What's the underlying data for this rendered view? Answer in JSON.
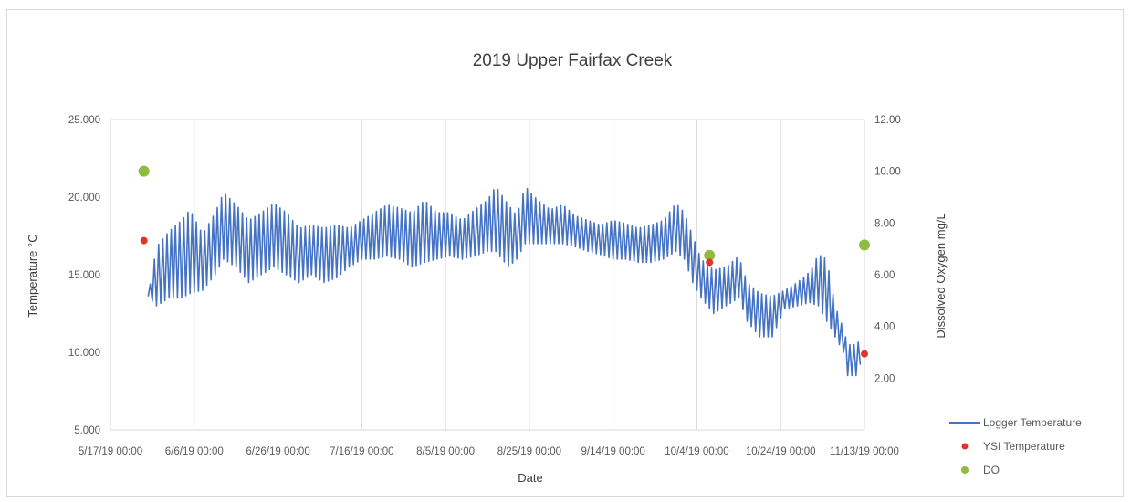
{
  "chart_data": {
    "type": "line",
    "title": "2019 Upper Fairfax Creek",
    "xlabel": "Date",
    "ylabel": "Temperature °C",
    "y2label": "Dissolved Oxygen mg/L",
    "x_ticks": [
      "5/17/19 00:00",
      "6/6/19 00:00",
      "6/26/19 00:00",
      "7/16/19 00:00",
      "8/5/19 00:00",
      "8/25/19 00:00",
      "9/14/19 00:00",
      "10/4/19 00:00",
      "10/24/19 00:00",
      "11/13/19 00:00"
    ],
    "xlim": [
      "2019-05-17",
      "2019-11-13"
    ],
    "ylim": [
      5,
      25
    ],
    "y_ticks": [
      "5.000",
      "10.000",
      "15.000",
      "20.000",
      "25.000"
    ],
    "y2lim": [
      0,
      12
    ],
    "y2_ticks": [
      "",
      "2.00",
      "4.00",
      "6.00",
      "8.00",
      "10.00",
      "12.00"
    ],
    "grid": "vertical",
    "legend_position": "bottom-right",
    "colors": {
      "logger": "#4472c4",
      "ysi": "#e0342c",
      "do": "#8fbc3f"
    },
    "series": [
      {
        "name": "Logger Temperature",
        "kind": "line",
        "axis": "left",
        "points": [
          [
            "2019-05-26",
            13.6,
            13.6
          ],
          [
            "2019-05-28",
            13.0,
            16.8
          ],
          [
            "2019-05-31",
            13.5,
            17.8
          ],
          [
            "2019-06-03",
            13.5,
            18.5
          ],
          [
            "2019-06-05",
            13.8,
            19.2
          ],
          [
            "2019-06-08",
            14.0,
            17.6
          ],
          [
            "2019-06-11",
            15.0,
            19.0
          ],
          [
            "2019-06-13",
            16.0,
            20.3
          ],
          [
            "2019-06-16",
            15.5,
            19.5
          ],
          [
            "2019-06-19",
            14.5,
            18.5
          ],
          [
            "2019-06-22",
            15.0,
            19.0
          ],
          [
            "2019-06-25",
            15.5,
            19.6
          ],
          [
            "2019-06-28",
            15.0,
            19.0
          ],
          [
            "2019-07-01",
            14.5,
            18.0
          ],
          [
            "2019-07-04",
            15.0,
            18.2
          ],
          [
            "2019-07-07",
            14.5,
            18.0
          ],
          [
            "2019-07-10",
            14.8,
            18.2
          ],
          [
            "2019-07-13",
            15.5,
            18.0
          ],
          [
            "2019-07-16",
            16.0,
            18.5
          ],
          [
            "2019-07-19",
            16.0,
            19.0
          ],
          [
            "2019-07-22",
            16.2,
            19.5
          ],
          [
            "2019-07-25",
            16.0,
            19.3
          ],
          [
            "2019-07-28",
            15.5,
            19.0
          ],
          [
            "2019-07-31",
            15.8,
            19.8
          ],
          [
            "2019-08-03",
            16.0,
            19.0
          ],
          [
            "2019-08-06",
            16.2,
            19.0
          ],
          [
            "2019-08-09",
            16.0,
            18.5
          ],
          [
            "2019-08-12",
            16.2,
            19.2
          ],
          [
            "2019-08-15",
            16.5,
            19.8
          ],
          [
            "2019-08-17",
            16.5,
            20.7
          ],
          [
            "2019-08-20",
            15.5,
            19.5
          ],
          [
            "2019-08-22",
            16.0,
            18.8
          ],
          [
            "2019-08-24",
            17.0,
            20.7
          ],
          [
            "2019-08-27",
            17.0,
            19.8
          ],
          [
            "2019-08-30",
            17.0,
            19.2
          ],
          [
            "2019-09-02",
            17.0,
            19.5
          ],
          [
            "2019-09-05",
            16.8,
            18.8
          ],
          [
            "2019-09-08",
            16.5,
            18.5
          ],
          [
            "2019-09-11",
            16.3,
            18.2
          ],
          [
            "2019-09-14",
            16.0,
            18.5
          ],
          [
            "2019-09-17",
            16.0,
            18.3
          ],
          [
            "2019-09-20",
            15.8,
            18.0
          ],
          [
            "2019-09-23",
            15.8,
            18.2
          ],
          [
            "2019-09-26",
            16.0,
            18.5
          ],
          [
            "2019-09-29",
            16.5,
            19.6
          ],
          [
            "2019-10-01",
            16.0,
            19.0
          ],
          [
            "2019-10-03",
            14.5,
            17.5
          ],
          [
            "2019-10-05",
            13.5,
            16.0
          ],
          [
            "2019-10-08",
            12.5,
            15.3
          ],
          [
            "2019-10-11",
            13.0,
            15.5
          ],
          [
            "2019-10-14",
            13.5,
            16.2
          ],
          [
            "2019-10-16",
            12.0,
            14.5
          ],
          [
            "2019-10-19",
            11.0,
            13.8
          ],
          [
            "2019-10-22",
            11.0,
            13.6
          ],
          [
            "2019-10-25",
            12.8,
            14.0
          ],
          [
            "2019-10-28",
            13.0,
            14.5
          ],
          [
            "2019-10-31",
            13.2,
            15.2
          ],
          [
            "2019-11-02",
            13.0,
            16.3
          ],
          [
            "2019-11-04",
            12.0,
            16.0
          ],
          [
            "2019-11-06",
            11.0,
            13.0
          ],
          [
            "2019-11-08",
            10.0,
            11.5
          ],
          [
            "2019-11-09",
            8.5,
            10.5
          ],
          [
            "2019-11-11",
            8.5,
            10.5
          ],
          [
            "2019-11-12",
            9.2,
            10.8
          ]
        ]
      },
      {
        "name": "YSI Temperature",
        "kind": "scatter",
        "axis": "left",
        "points": [
          [
            "2019-05-25",
            17.2
          ],
          [
            "2019-10-07",
            15.8
          ],
          [
            "2019-11-13",
            9.9
          ]
        ]
      },
      {
        "name": "DO",
        "kind": "scatter",
        "axis": "right",
        "points": [
          [
            "2019-05-25",
            10.0
          ],
          [
            "2019-10-07",
            6.75
          ],
          [
            "2019-11-13",
            7.15
          ]
        ]
      }
    ]
  }
}
